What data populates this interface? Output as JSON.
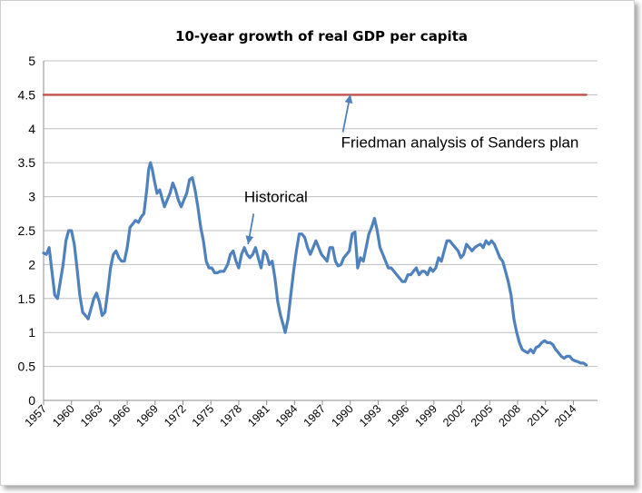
{
  "chart_data": {
    "type": "line",
    "title": "10-year growth of real GDP per capita",
    "xlabel": "",
    "ylabel": "",
    "ylim": [
      0,
      5
    ],
    "yticks": [
      "0",
      "0.5",
      "1",
      "1.5",
      "2",
      "2.5",
      "3",
      "3.5",
      "4",
      "4.5",
      "5"
    ],
    "xlim": [
      1957,
      2016.6
    ],
    "xticks": [
      "1957",
      "1960",
      "1963",
      "1966",
      "1969",
      "1972",
      "1975",
      "1978",
      "1981",
      "1984",
      "1987",
      "1990",
      "1993",
      "1996",
      "1999",
      "2002",
      "2005",
      "2008",
      "2011",
      "2014"
    ],
    "grid": true,
    "series": [
      {
        "color": "#4f81bd",
        "points": [
          [
            1957.0,
            2.17
          ],
          [
            1957.3,
            2.15
          ],
          [
            1957.6,
            2.25
          ],
          [
            1957.9,
            1.9
          ],
          [
            1958.2,
            1.55
          ],
          [
            1958.5,
            1.5
          ],
          [
            1958.8,
            1.75
          ],
          [
            1959.1,
            2.0
          ],
          [
            1959.4,
            2.35
          ],
          [
            1959.7,
            2.5
          ],
          [
            1960.0,
            2.5
          ],
          [
            1960.3,
            2.3
          ],
          [
            1960.6,
            1.95
          ],
          [
            1960.9,
            1.55
          ],
          [
            1961.2,
            1.3
          ],
          [
            1961.5,
            1.25
          ],
          [
            1961.8,
            1.2
          ],
          [
            1962.1,
            1.35
          ],
          [
            1962.4,
            1.5
          ],
          [
            1962.7,
            1.58
          ],
          [
            1963.0,
            1.45
          ],
          [
            1963.3,
            1.25
          ],
          [
            1963.6,
            1.3
          ],
          [
            1963.9,
            1.6
          ],
          [
            1964.2,
            1.95
          ],
          [
            1964.5,
            2.15
          ],
          [
            1964.8,
            2.2
          ],
          [
            1965.1,
            2.1
          ],
          [
            1965.4,
            2.05
          ],
          [
            1965.7,
            2.05
          ],
          [
            1966.0,
            2.25
          ],
          [
            1966.3,
            2.55
          ],
          [
            1966.6,
            2.6
          ],
          [
            1966.9,
            2.65
          ],
          [
            1967.2,
            2.62
          ],
          [
            1967.5,
            2.7
          ],
          [
            1967.8,
            2.75
          ],
          [
            1968.1,
            3.1
          ],
          [
            1968.3,
            3.4
          ],
          [
            1968.5,
            3.5
          ],
          [
            1968.7,
            3.4
          ],
          [
            1968.9,
            3.25
          ],
          [
            1969.2,
            3.05
          ],
          [
            1969.5,
            3.1
          ],
          [
            1969.8,
            2.95
          ],
          [
            1970.0,
            2.85
          ],
          [
            1970.3,
            2.95
          ],
          [
            1970.6,
            3.05
          ],
          [
            1970.9,
            3.2
          ],
          [
            1971.2,
            3.1
          ],
          [
            1971.5,
            2.95
          ],
          [
            1971.8,
            2.85
          ],
          [
            1972.1,
            2.95
          ],
          [
            1972.4,
            3.05
          ],
          [
            1972.7,
            3.25
          ],
          [
            1973.0,
            3.28
          ],
          [
            1973.3,
            3.1
          ],
          [
            1973.6,
            2.85
          ],
          [
            1973.9,
            2.55
          ],
          [
            1974.2,
            2.35
          ],
          [
            1974.5,
            2.05
          ],
          [
            1974.8,
            1.95
          ],
          [
            1975.1,
            1.95
          ],
          [
            1975.4,
            1.88
          ],
          [
            1975.7,
            1.88
          ],
          [
            1976.0,
            1.9
          ],
          [
            1976.4,
            1.9
          ],
          [
            1976.8,
            2.0
          ],
          [
            1977.1,
            2.15
          ],
          [
            1977.4,
            2.2
          ],
          [
            1977.7,
            2.05
          ],
          [
            1978.0,
            1.95
          ],
          [
            1978.3,
            2.15
          ],
          [
            1978.6,
            2.25
          ],
          [
            1978.9,
            2.15
          ],
          [
            1979.2,
            2.1
          ],
          [
            1979.5,
            2.15
          ],
          [
            1979.8,
            2.25
          ],
          [
            1980.1,
            2.1
          ],
          [
            1980.4,
            1.95
          ],
          [
            1980.7,
            2.2
          ],
          [
            1981.0,
            2.15
          ],
          [
            1981.3,
            2.0
          ],
          [
            1981.6,
            2.05
          ],
          [
            1981.9,
            1.8
          ],
          [
            1982.2,
            1.45
          ],
          [
            1982.5,
            1.25
          ],
          [
            1982.8,
            1.1
          ],
          [
            1983.0,
            1.0
          ],
          [
            1983.3,
            1.2
          ],
          [
            1983.6,
            1.55
          ],
          [
            1983.9,
            1.9
          ],
          [
            1984.2,
            2.2
          ],
          [
            1984.5,
            2.45
          ],
          [
            1984.8,
            2.45
          ],
          [
            1985.1,
            2.4
          ],
          [
            1985.4,
            2.25
          ],
          [
            1985.7,
            2.15
          ],
          [
            1986.0,
            2.25
          ],
          [
            1986.3,
            2.35
          ],
          [
            1986.6,
            2.25
          ],
          [
            1986.9,
            2.15
          ],
          [
            1987.2,
            2.1
          ],
          [
            1987.5,
            2.05
          ],
          [
            1987.8,
            2.25
          ],
          [
            1988.1,
            2.25
          ],
          [
            1988.4,
            2.05
          ],
          [
            1988.7,
            1.98
          ],
          [
            1989.0,
            2.0
          ],
          [
            1989.3,
            2.1
          ],
          [
            1989.6,
            2.15
          ],
          [
            1989.9,
            2.2
          ],
          [
            1990.2,
            2.45
          ],
          [
            1990.5,
            2.48
          ],
          [
            1990.8,
            1.95
          ],
          [
            1991.1,
            2.1
          ],
          [
            1991.4,
            2.05
          ],
          [
            1991.7,
            2.25
          ],
          [
            1992.0,
            2.45
          ],
          [
            1992.3,
            2.55
          ],
          [
            1992.6,
            2.68
          ],
          [
            1992.9,
            2.5
          ],
          [
            1993.2,
            2.25
          ],
          [
            1993.5,
            2.15
          ],
          [
            1993.8,
            2.05
          ],
          [
            1994.1,
            1.95
          ],
          [
            1994.4,
            1.95
          ],
          [
            1994.7,
            1.9
          ],
          [
            1995.0,
            1.85
          ],
          [
            1995.3,
            1.8
          ],
          [
            1995.6,
            1.75
          ],
          [
            1995.9,
            1.75
          ],
          [
            1996.2,
            1.85
          ],
          [
            1996.5,
            1.85
          ],
          [
            1996.8,
            1.9
          ],
          [
            1997.1,
            1.95
          ],
          [
            1997.4,
            1.85
          ],
          [
            1997.7,
            1.9
          ],
          [
            1998.0,
            1.9
          ],
          [
            1998.3,
            1.85
          ],
          [
            1998.6,
            1.95
          ],
          [
            1998.9,
            1.9
          ],
          [
            1999.2,
            1.95
          ],
          [
            1999.5,
            2.1
          ],
          [
            1999.8,
            2.05
          ],
          [
            2000.1,
            2.2
          ],
          [
            2000.4,
            2.35
          ],
          [
            2000.7,
            2.35
          ],
          [
            2001.0,
            2.3
          ],
          [
            2001.3,
            2.25
          ],
          [
            2001.6,
            2.2
          ],
          [
            2001.9,
            2.1
          ],
          [
            2002.2,
            2.15
          ],
          [
            2002.5,
            2.3
          ],
          [
            2002.8,
            2.25
          ],
          [
            2003.1,
            2.2
          ],
          [
            2003.4,
            2.25
          ],
          [
            2003.7,
            2.28
          ],
          [
            2004.0,
            2.3
          ],
          [
            2004.3,
            2.25
          ],
          [
            2004.6,
            2.35
          ],
          [
            2004.9,
            2.3
          ],
          [
            2005.2,
            2.35
          ],
          [
            2005.5,
            2.3
          ],
          [
            2005.8,
            2.2
          ],
          [
            2006.1,
            2.1
          ],
          [
            2006.4,
            2.05
          ],
          [
            2006.7,
            1.9
          ],
          [
            2007.0,
            1.75
          ],
          [
            2007.3,
            1.55
          ],
          [
            2007.6,
            1.2
          ],
          [
            2007.9,
            1.0
          ],
          [
            2008.2,
            0.85
          ],
          [
            2008.5,
            0.75
          ],
          [
            2008.8,
            0.72
          ],
          [
            2009.1,
            0.7
          ],
          [
            2009.4,
            0.75
          ],
          [
            2009.7,
            0.7
          ],
          [
            2010.0,
            0.78
          ],
          [
            2010.3,
            0.8
          ],
          [
            2010.6,
            0.85
          ],
          [
            2010.9,
            0.88
          ],
          [
            2011.2,
            0.85
          ],
          [
            2011.5,
            0.85
          ],
          [
            2011.8,
            0.82
          ],
          [
            2012.1,
            0.75
          ],
          [
            2012.4,
            0.7
          ],
          [
            2012.7,
            0.65
          ],
          [
            2013.0,
            0.62
          ],
          [
            2013.3,
            0.65
          ],
          [
            2013.6,
            0.65
          ],
          [
            2013.9,
            0.6
          ],
          [
            2014.2,
            0.58
          ],
          [
            2014.5,
            0.57
          ],
          [
            2014.8,
            0.55
          ],
          [
            2015.1,
            0.55
          ],
          [
            2015.4,
            0.52
          ]
        ]
      },
      {
        "color": "#c0504d",
        "points": [
          [
            1957.0,
            4.5
          ],
          [
            2015.4,
            4.5
          ]
        ]
      }
    ],
    "annotations": [
      {
        "text": "Friedman analysis of Sanders plan",
        "arrow_to": [
          1990.0,
          4.5
        ],
        "arrow_from": [
          1989.2,
          3.95
        ],
        "text_at": [
          2001.8,
          3.72
        ]
      },
      {
        "text": "Historical",
        "arrow_to": [
          1979.0,
          2.3
        ],
        "arrow_from": [
          1979.6,
          2.75
        ],
        "text_at": [
          1982.0,
          2.92
        ]
      }
    ]
  }
}
